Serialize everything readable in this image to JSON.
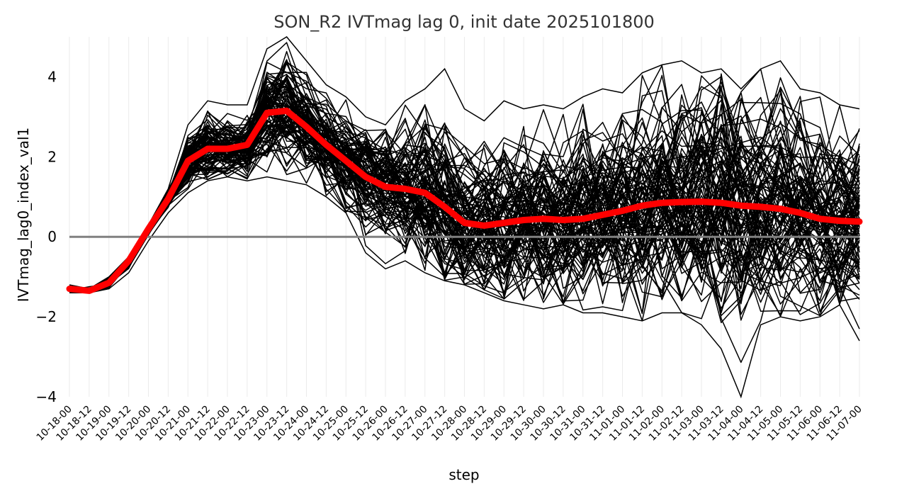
{
  "chart_data": {
    "type": "line",
    "title": "SON_R2 IVTmag lag 0, init date 2025101800",
    "xlabel": "step",
    "ylabel": "IVTmag_lag0_index_val1",
    "ylim": [
      -4,
      5
    ],
    "yticks": [
      -4,
      -2,
      0,
      2,
      4
    ],
    "ytick_labels": [
      "−4",
      "−2",
      "0",
      "2",
      "4"
    ],
    "grid": "vertical",
    "reference_line": {
      "y": 0,
      "color": "#808080"
    },
    "ensemble_color": "#000000",
    "mean_color": "#ff0000",
    "ensemble_members_approx": 100,
    "categories": [
      "10-18-00",
      "10-18-12",
      "10-19-00",
      "10-19-12",
      "10-20-00",
      "10-20-12",
      "10-21-00",
      "10-21-12",
      "10-22-00",
      "10-22-12",
      "10-23-00",
      "10-23-12",
      "10-24-00",
      "10-24-12",
      "10-25-00",
      "10-25-12",
      "10-26-00",
      "10-26-12",
      "10-27-00",
      "10-27-12",
      "10-28-00",
      "10-28-12",
      "10-29-00",
      "10-29-12",
      "10-30-00",
      "10-30-12",
      "10-31-00",
      "10-31-12",
      "11-01-00",
      "11-01-12",
      "11-02-00",
      "11-02-12",
      "11-03-00",
      "11-03-12",
      "11-04-00",
      "11-04-12",
      "11-05-00",
      "11-05-12",
      "11-06-00",
      "11-06-12",
      "11-07-00"
    ],
    "ensemble_envelope": {
      "upper": [
        -1.2,
        -1.3,
        -1.0,
        -0.5,
        0.3,
        1.2,
        2.8,
        3.4,
        3.3,
        3.3,
        4.7,
        5.0,
        4.4,
        3.8,
        3.5,
        3.0,
        2.8,
        3.4,
        3.7,
        4.2,
        3.2,
        2.9,
        3.4,
        3.2,
        3.3,
        3.2,
        3.5,
        3.7,
        3.6,
        4.1,
        4.3,
        4.4,
        4.1,
        4.2,
        3.7,
        4.2,
        4.4,
        3.7,
        3.6,
        3.3,
        3.2
      ],
      "lower": [
        -1.4,
        -1.4,
        -1.3,
        -0.9,
        -0.1,
        0.6,
        1.1,
        1.4,
        1.5,
        1.4,
        1.5,
        1.4,
        1.3,
        1.0,
        0.6,
        -0.4,
        -0.8,
        -0.6,
        -0.9,
        -1.1,
        -1.2,
        -1.4,
        -1.6,
        -1.7,
        -1.8,
        -1.7,
        -1.9,
        -1.9,
        -2.0,
        -2.1,
        -1.9,
        -1.9,
        -2.2,
        -2.8,
        -4.1,
        -2.2,
        -2.0,
        -2.1,
        -2.0,
        -1.7,
        -2.6
      ]
    },
    "series": [
      {
        "values": [
          -1.3,
          -1.35,
          -1.15,
          -0.6,
          0.2,
          0.95,
          1.9,
          2.2,
          2.2,
          2.3,
          3.1,
          3.15,
          2.75,
          2.3,
          1.9,
          1.5,
          1.25,
          1.2,
          1.1,
          0.75,
          0.35,
          0.28,
          0.35,
          0.42,
          0.45,
          0.42,
          0.45,
          0.55,
          0.65,
          0.78,
          0.85,
          0.87,
          0.88,
          0.85,
          0.78,
          0.75,
          0.7,
          0.6,
          0.45,
          0.4,
          0.38
        ]
      }
    ]
  }
}
